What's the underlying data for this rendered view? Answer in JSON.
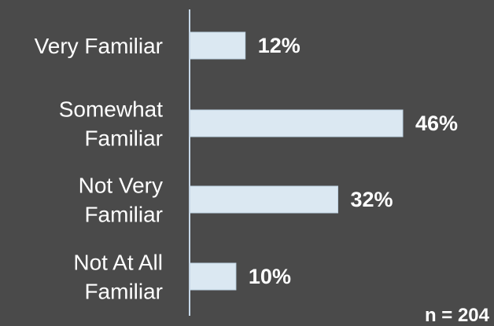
{
  "chart_data": {
    "type": "bar",
    "orientation": "horizontal",
    "categories": [
      [
        "Very Familiar"
      ],
      [
        "Somewhat",
        "Familiar"
      ],
      [
        "Not Very",
        "Familiar"
      ],
      [
        "Not At All",
        "Familiar"
      ]
    ],
    "values": [
      12,
      46,
      32,
      10
    ],
    "value_labels": [
      "12%",
      "46%",
      "32%",
      "10%"
    ],
    "xlim": [
      0,
      46
    ],
    "grid": false,
    "legend": "none"
  },
  "note": "n = 204",
  "colors": {
    "background": "#4a4a4a",
    "bar_fill": "#dbe8f2",
    "bar_stroke": "#bfd3e2",
    "axis": "#c7d8e8",
    "text": "#ffffff"
  }
}
